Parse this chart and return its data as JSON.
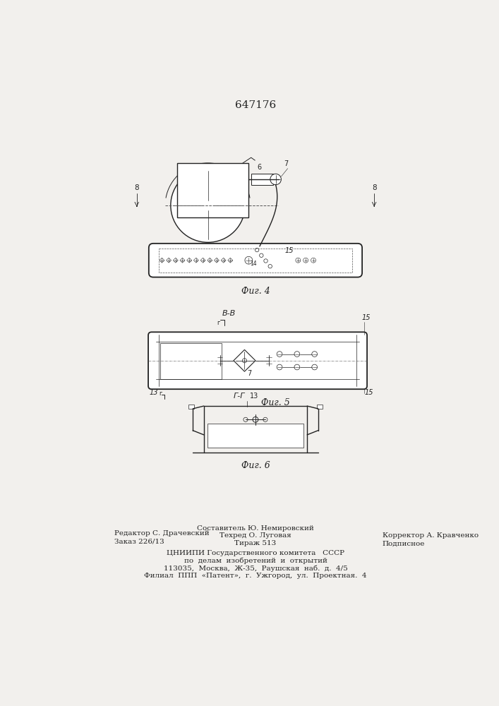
{
  "patent_number": "647176",
  "page_color": "#f2f0ed",
  "fig4_caption": "Фиг. 4",
  "fig5_caption": "Фиг. 5",
  "fig6_caption": "Фиг. 6",
  "section_BB": "В-В",
  "section_GG": "Г-Г",
  "lbl_8": "8",
  "lbl_6": "6",
  "lbl_7": "7",
  "lbl_14": "14",
  "lbl_15": "15",
  "lbl_13": "13",
  "footer_left1": "Редактор С. Драчевский",
  "footer_left2": "Заказ 226/13",
  "footer_center1": "Составитель Ю. Немировский",
  "footer_center2": "Техред О. Луговая",
  "footer_center3": "Тираж 513",
  "footer_right1": "Корректор А. Кравченко",
  "footer_right2": "Подписное",
  "footer_b1": "ЦНИИПИ Государственного комитета   СССР",
  "footer_b2": "по  делам  изобретений  и  открытий",
  "footer_b3": "113035,  Москва,  Ж-35,  Раушская  наб.  д.  4/5",
  "footer_b4": "Филиал  ППП  «Патент»,  г.  Ужгород,  ул.  Проектная.  4"
}
